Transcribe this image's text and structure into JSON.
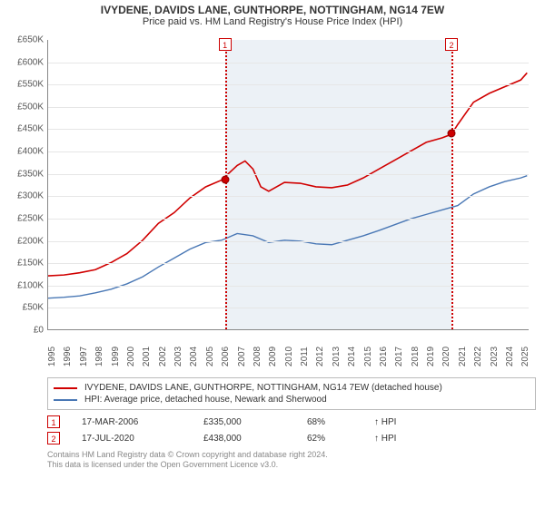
{
  "title": "IVYDENE, DAVIDS LANE, GUNTHORPE, NOTTINGHAM, NG14 7EW",
  "subtitle": "Price paid vs. HM Land Registry's House Price Index (HPI)",
  "chart": {
    "type": "line",
    "background_color": "#ffffff",
    "grid_color": "#e6e6e6",
    "axis_color": "#888888",
    "label_fontsize": 10,
    "ylim": [
      0,
      650000
    ],
    "ytick_step": 50000,
    "yticklabels": [
      "£0",
      "£50K",
      "£100K",
      "£150K",
      "£200K",
      "£250K",
      "£300K",
      "£350K",
      "£400K",
      "£450K",
      "£500K",
      "£550K",
      "£600K",
      "£650K"
    ],
    "xlim": [
      1995,
      2025.5
    ],
    "xticks": [
      1995,
      1996,
      1997,
      1998,
      1999,
      2000,
      2001,
      2002,
      2003,
      2004,
      2005,
      2006,
      2007,
      2008,
      2009,
      2010,
      2011,
      2012,
      2013,
      2014,
      2015,
      2016,
      2017,
      2018,
      2019,
      2020,
      2021,
      2022,
      2023,
      2024,
      2025
    ],
    "series": [
      {
        "id": "property",
        "label": "IVYDENE, DAVIDS LANE, GUNTHORPE, NOTTINGHAM, NG14 7EW (detached house)",
        "color": "#d00000",
        "line_width": 1.6,
        "x": [
          1995,
          1996,
          1997,
          1998,
          1999,
          2000,
          2001,
          2002,
          2003,
          2004,
          2005,
          2006,
          2007,
          2007.5,
          2008,
          2008.5,
          2009,
          2010,
          2011,
          2012,
          2013,
          2014,
          2015,
          2016,
          2017,
          2018,
          2019,
          2020,
          2020.6,
          2021,
          2022,
          2023,
          2024,
          2025,
          2025.4
        ],
        "y": [
          120000,
          122000,
          127000,
          134000,
          150000,
          170000,
          200000,
          238000,
          262000,
          295000,
          320000,
          335000,
          368000,
          378000,
          360000,
          320000,
          310000,
          330000,
          328000,
          320000,
          318000,
          324000,
          340000,
          360000,
          380000,
          400000,
          420000,
          430000,
          438000,
          460000,
          510000,
          530000,
          545000,
          560000,
          576000
        ]
      },
      {
        "id": "hpi",
        "label": "HPI: Average price, detached house, Newark and Sherwood",
        "color": "#4a78b5",
        "line_width": 1.4,
        "x": [
          1995,
          1996,
          1997,
          1998,
          1999,
          2000,
          2001,
          2002,
          2003,
          2004,
          2005,
          2006,
          2007,
          2008,
          2009,
          2010,
          2011,
          2012,
          2013,
          2014,
          2015,
          2016,
          2017,
          2018,
          2019,
          2020,
          2021,
          2022,
          2023,
          2024,
          2025,
          2025.4
        ],
        "y": [
          70000,
          72000,
          75000,
          82000,
          90000,
          102000,
          118000,
          140000,
          160000,
          180000,
          195000,
          200000,
          215000,
          210000,
          195000,
          200000,
          198000,
          192000,
          190000,
          200000,
          210000,
          222000,
          235000,
          248000,
          258000,
          268000,
          278000,
          304000,
          320000,
          332000,
          340000,
          345000
        ]
      }
    ],
    "sale_markers": [
      {
        "n": "1",
        "x": 2006.2,
        "y": 335000,
        "line_color": "#cc0000"
      },
      {
        "n": "2",
        "x": 2020.55,
        "y": 438000,
        "line_color": "#cc0000"
      }
    ],
    "shade": {
      "from_x": 2006.2,
      "to_x": 2020.55,
      "color": "rgba(200,215,230,0.35)"
    }
  },
  "legend": {
    "items": [
      {
        "color": "#d00000",
        "label": "IVYDENE, DAVIDS LANE, GUNTHORPE, NOTTINGHAM, NG14 7EW (detached house)"
      },
      {
        "color": "#4a78b5",
        "label": "HPI: Average price, detached house, Newark and Sherwood"
      }
    ]
  },
  "sales": [
    {
      "n": "1",
      "date": "17-MAR-2006",
      "price": "£335,000",
      "pct": "68%",
      "arrow": "↑",
      "vs": "HPI"
    },
    {
      "n": "2",
      "date": "17-JUL-2020",
      "price": "£438,000",
      "pct": "62%",
      "arrow": "↑",
      "vs": "HPI"
    }
  ],
  "footer_line1": "Contains HM Land Registry data © Crown copyright and database right 2024.",
  "footer_line2": "This data is licensed under the Open Government Licence v3.0."
}
